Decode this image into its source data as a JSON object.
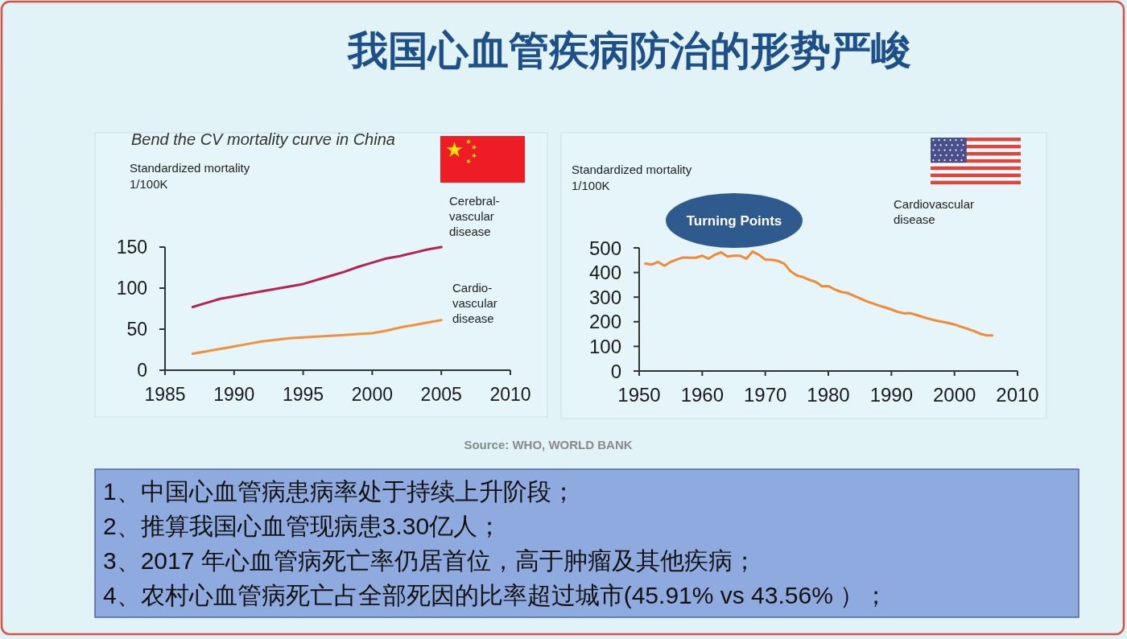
{
  "chart_data": [
    {
      "type": "other",
      "title": "我国心血管疾病防治的形势严峻"
    },
    {
      "type": "line",
      "title": "Bend the CV mortality curve in China",
      "ylabel": "Standardized mortality\n1/100K",
      "x": [
        1987,
        1988,
        1989,
        1990,
        1991,
        1992,
        1993,
        1994,
        1995,
        1996,
        1997,
        1998,
        1999,
        2000,
        2001,
        2002,
        2003,
        2004,
        2005
      ],
      "series": [
        {
          "name": "Cerebral-\nvascular\ndisease",
          "color": "#b52350",
          "values": [
            77,
            82,
            87,
            90,
            93,
            96,
            99,
            102,
            105,
            110,
            115,
            120,
            126,
            131,
            136,
            139,
            143,
            147,
            150
          ]
        },
        {
          "name": "Cardio-\nvascular\ndisease",
          "color": "#f0913c",
          "values": [
            20,
            23,
            26,
            29,
            32,
            35,
            37,
            39,
            40,
            41,
            42,
            43,
            44,
            45,
            48,
            52,
            55,
            58,
            61
          ]
        }
      ],
      "xlim": [
        1985,
        2010
      ],
      "xticks": [
        1985,
        1990,
        1995,
        2000,
        2005,
        2010
      ],
      "ylim": [
        0,
        150
      ],
      "yticks": [
        0,
        50,
        100,
        150
      ]
    },
    {
      "type": "line",
      "ylabel": "Standardized mortality\n1/100K",
      "x": [
        1951,
        1952,
        1953,
        1954,
        1955,
        1956,
        1957,
        1958,
        1959,
        1960,
        1961,
        1962,
        1963,
        1964,
        1965,
        1966,
        1967,
        1968,
        1969,
        1970,
        1971,
        1972,
        1973,
        1974,
        1975,
        1976,
        1977,
        1978,
        1979,
        1980,
        1981,
        1982,
        1983,
        1984,
        1985,
        1986,
        1987,
        1988,
        1989,
        1990,
        1991,
        1992,
        1993,
        1994,
        1995,
        1996,
        1997,
        1998,
        1999,
        2000,
        2001,
        2002,
        2003,
        2004,
        2005,
        2006
      ],
      "series": [
        {
          "name": "Cardiovascular\ndisease",
          "color": "#f08a35",
          "values": [
            436,
            432,
            443,
            427,
            443,
            453,
            461,
            460,
            460,
            468,
            456,
            472,
            482,
            465,
            468,
            468,
            456,
            485,
            472,
            452,
            452,
            447,
            436,
            405,
            388,
            381,
            370,
            362,
            344,
            345,
            331,
            321,
            317,
            306,
            295,
            284,
            275,
            266,
            258,
            250,
            240,
            234,
            235,
            227,
            219,
            212,
            205,
            200,
            195,
            189,
            180,
            172,
            163,
            152,
            145,
            145
          ]
        }
      ],
      "xlim": [
        1950,
        2010
      ],
      "xticks": [
        1950,
        1960,
        1970,
        1980,
        1990,
        2000,
        2010
      ],
      "ylim": [
        0,
        500
      ],
      "yticks": [
        0,
        100,
        200,
        300,
        400,
        500
      ],
      "annotations": [
        "Turning Points"
      ]
    },
    {
      "type": "other",
      "annotations": [
        "Source: WHO, WORLD BANK"
      ]
    },
    {
      "type": "other",
      "annotations": [
        "1、中国心血管病患病率处于持续上升阶段；",
        "2、推算我国心血管现病患3.30亿人；",
        "3、2017 年心血管病死亡率仍居首位，高于肿瘤及其他疾病；",
        "4、农村心血管病死亡占全部死因的比率超过城市(45.91% vs 43.56% ）；"
      ]
    }
  ]
}
